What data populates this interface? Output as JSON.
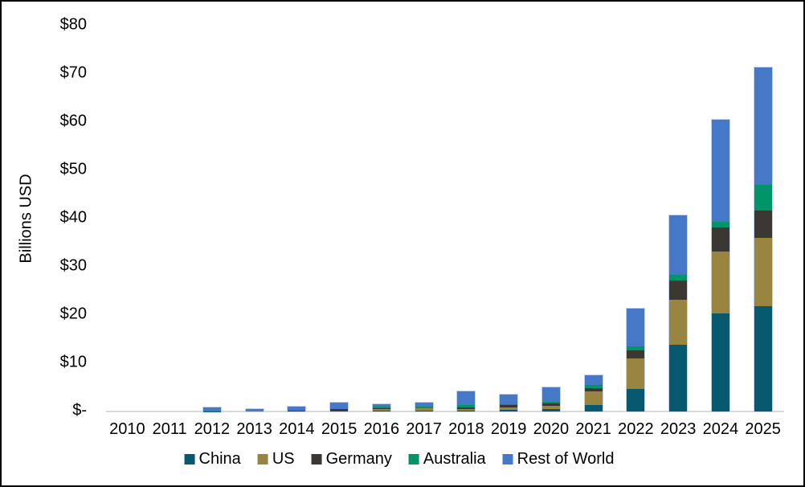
{
  "chart_data": {
    "type": "bar",
    "stacked": true,
    "title": "",
    "xlabel": "",
    "ylabel": "Billions USD",
    "ylim": [
      0,
      80
    ],
    "grid": false,
    "legend_position": "bottom",
    "categories": [
      "2010",
      "2011",
      "2012",
      "2013",
      "2014",
      "2015",
      "2016",
      "2017",
      "2018",
      "2019",
      "2020",
      "2021",
      "2022",
      "2023",
      "2024",
      "2025"
    ],
    "yticks": [
      {
        "label": "$-",
        "value": 0
      },
      {
        "label": "$10",
        "value": 10
      },
      {
        "label": "$20",
        "value": 20
      },
      {
        "label": "$30",
        "value": 30
      },
      {
        "label": "$40",
        "value": 40
      },
      {
        "label": "$50",
        "value": 50
      },
      {
        "label": "$60",
        "value": 60
      },
      {
        "label": "$70",
        "value": 70
      },
      {
        "label": "$80",
        "value": 80
      }
    ],
    "series": [
      {
        "name": "China",
        "color": "#06596E",
        "values": [
          0,
          0,
          0.05,
          0,
          0,
          0.1,
          0.1,
          0.1,
          0.1,
          0.35,
          0.45,
          1.3,
          4.6,
          13.8,
          20.3,
          21.8
        ]
      },
      {
        "name": "US",
        "color": "#9A8540",
        "values": [
          0,
          0,
          0,
          0,
          0,
          0.1,
          0.45,
          0.5,
          0.4,
          0.55,
          0.65,
          2.8,
          6.4,
          9.3,
          12.8,
          14.2
        ]
      },
      {
        "name": "Germany",
        "color": "#3B3834",
        "values": [
          0,
          0,
          0,
          0,
          0.1,
          0.3,
          0.1,
          0.1,
          0.35,
          0.4,
          0.55,
          0.8,
          1.7,
          4.1,
          5.1,
          5.7
        ]
      },
      {
        "name": "Australia",
        "color": "#009469",
        "values": [
          0,
          0,
          0,
          0,
          0,
          0.05,
          0.35,
          0.35,
          0.55,
          0.25,
          0.35,
          0.55,
          0.8,
          1.1,
          1.2,
          5.3
        ]
      },
      {
        "name": "Rest of World",
        "color": "#4579C8",
        "values": [
          0,
          0,
          0.75,
          0.45,
          0.9,
          1.25,
          0.55,
          0.8,
          2.8,
          1.9,
          3.0,
          2.05,
          7.9,
          12.3,
          21.1,
          24.3
        ]
      }
    ],
    "totals": [
      0,
      0,
      0.8,
      0.45,
      1.0,
      1.8,
      1.55,
      1.85,
      4.2,
      3.45,
      5.0,
      7.5,
      21.4,
      40.6,
      60.5,
      71.3
    ],
    "axis_line_color": "#D9D9D9",
    "bar_outline_color": "#C3D1EA",
    "text_color": "#000000",
    "background_color": "#FFFFFF"
  }
}
